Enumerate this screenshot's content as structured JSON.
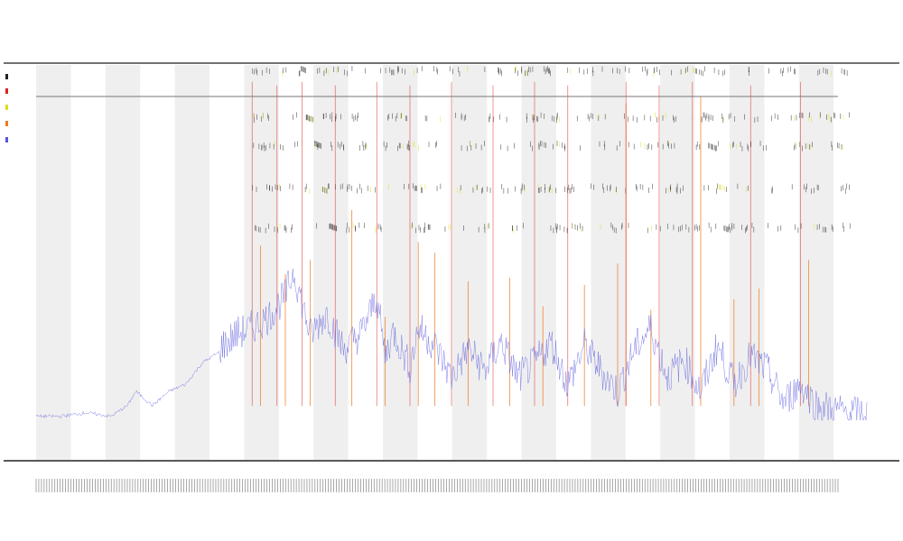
{
  "chart_data": {
    "type": "line",
    "title": "",
    "subtitle_lines": [
      "",
      ""
    ],
    "xlabel": "",
    "ylabel": "",
    "grid": false,
    "legend_placement": "top-left",
    "band_count": 24,
    "colors": {
      "band": "#efefef",
      "baseline": "#5555dd",
      "spike_orange": "#ee7a22",
      "spike_red": "#dd2222",
      "spike_yellow": "#dddd22",
      "tick_black": "#222222",
      "axis": "#333333"
    },
    "series": [
      {
        "key": "baseline",
        "style": "line",
        "x": [
          0,
          3,
          6,
          9,
          11,
          12,
          14,
          16,
          18,
          20,
          22,
          24,
          26,
          28,
          30,
          31,
          33,
          35,
          37,
          39,
          40,
          41,
          42,
          43,
          45,
          46,
          48,
          50,
          52,
          54,
          56,
          58,
          60,
          62,
          64,
          66,
          68,
          70,
          72,
          74,
          76,
          78,
          80,
          82,
          84,
          86,
          88,
          90,
          92,
          94,
          96,
          98,
          100
        ],
        "y": [
          0.02,
          0.02,
          0.03,
          0.02,
          0.05,
          0.09,
          0.05,
          0.09,
          0.11,
          0.17,
          0.2,
          0.24,
          0.26,
          0.29,
          0.35,
          0.42,
          0.24,
          0.3,
          0.2,
          0.24,
          0.29,
          0.35,
          0.18,
          0.25,
          0.15,
          0.26,
          0.21,
          0.12,
          0.2,
          0.14,
          0.22,
          0.12,
          0.16,
          0.22,
          0.1,
          0.21,
          0.14,
          0.08,
          0.2,
          0.26,
          0.12,
          0.17,
          0.08,
          0.21,
          0.1,
          0.18,
          0.14,
          0.05,
          0.1,
          0.04,
          0.03,
          0.02,
          0.02
        ]
      },
      {
        "key": "orange_spikes",
        "style": "spikes",
        "x": [
          27,
          30,
          33,
          38,
          42,
          46,
          48,
          52,
          57,
          61,
          66,
          70,
          71,
          74,
          80,
          84,
          87,
          93
        ],
        "y": [
          0.5,
          0.42,
          0.46,
          0.6,
          0.3,
          0.51,
          0.48,
          0.4,
          0.41,
          0.33,
          0.39,
          0.45,
          0.9,
          0.32,
          0.92,
          0.35,
          0.38,
          0.46
        ]
      },
      {
        "key": "red_spikes",
        "style": "spikes",
        "x": [
          26,
          29,
          32,
          36,
          41,
          45,
          50,
          55,
          60,
          64,
          71,
          75,
          79,
          86,
          92
        ],
        "y": [
          0.96,
          0.95,
          0.96,
          0.95,
          0.96,
          0.95,
          0.96,
          0.95,
          0.96,
          0.95,
          0.96,
          0.95,
          0.96,
          0.95,
          0.96
        ]
      }
    ],
    "tick_rows": [
      0.99,
      0.86,
      0.78,
      0.66,
      0.55
    ]
  }
}
